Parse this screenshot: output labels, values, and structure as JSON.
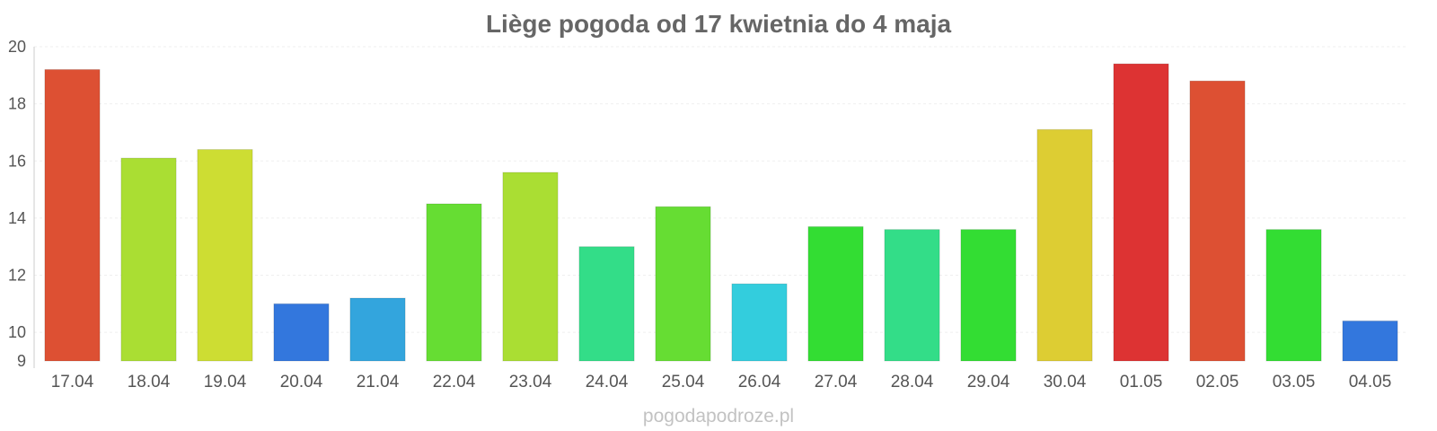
{
  "chart_data": {
    "type": "bar",
    "title": "Liège pogoda od 17 kwietnia do 4 maja",
    "categories": [
      "17.04",
      "18.04",
      "19.04",
      "20.04",
      "21.04",
      "22.04",
      "23.04",
      "24.04",
      "25.04",
      "26.04",
      "27.04",
      "28.04",
      "29.04",
      "30.04",
      "01.05",
      "02.05",
      "03.05",
      "04.05"
    ],
    "values": [
      19.2,
      16.1,
      16.4,
      11.0,
      11.2,
      14.5,
      15.6,
      13.0,
      14.4,
      11.7,
      13.7,
      13.6,
      13.6,
      17.1,
      19.4,
      18.8,
      13.6,
      10.4
    ],
    "colors": [
      "#dd5033",
      "#aade33",
      "#cddd33",
      "#3377dd",
      "#33a5dd",
      "#66dd33",
      "#aade33",
      "#33dd88",
      "#66dd33",
      "#33cddd",
      "#33dd33",
      "#33dd88",
      "#33dd33",
      "#ddcd33",
      "#dd3333",
      "#dd5033",
      "#33dd33",
      "#3377dd"
    ],
    "yticks": [
      9,
      10,
      12,
      14,
      16,
      18,
      20
    ],
    "ylim": [
      9,
      20
    ],
    "grid": true,
    "xlabel": "",
    "ylabel": ""
  },
  "footer": "pogodapodroze.pl"
}
